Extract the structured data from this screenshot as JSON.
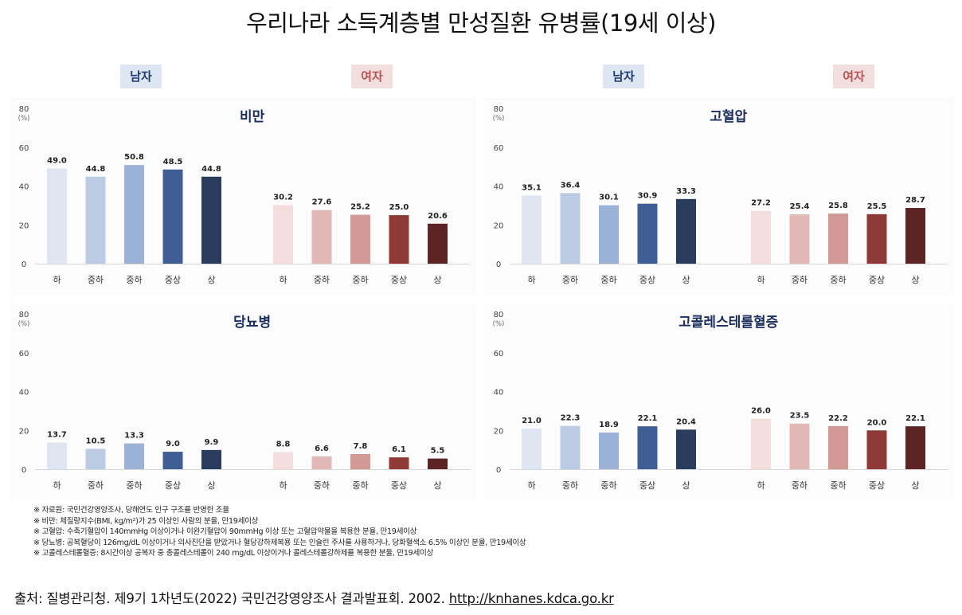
{
  "title": "우리나라 소득계층별 만성질환 유병률(19세 이상)",
  "gender_labels": {
    "male": "남자",
    "female": "여자"
  },
  "colors": {
    "male": [
      "#dfe6f2",
      "#bccbe4",
      "#9cb1d6",
      "#3f5e93",
      "#2a3d5e"
    ],
    "female": [
      "#f3dddd",
      "#e2b8b6",
      "#d39a95",
      "#8f3a36",
      "#5c2424"
    ]
  },
  "chart_data": [
    {
      "type": "bar",
      "title": "비만",
      "ylabel": "(%)",
      "ylim": [
        0,
        80
      ],
      "yticks": [
        0,
        20,
        40,
        60,
        80
      ],
      "groups": [
        "남자",
        "여자"
      ],
      "categories": [
        "하",
        "중하",
        "중하",
        "중상",
        "상"
      ],
      "series": [
        {
          "name": "남자",
          "values": [
            49.0,
            44.8,
            50.8,
            48.5,
            44.8
          ],
          "labels": [
            "49.0",
            "44.8",
            "50.8",
            "48.5",
            "44.8"
          ]
        },
        {
          "name": "여자",
          "values": [
            30.2,
            27.6,
            25.2,
            25.0,
            20.6
          ],
          "labels": [
            "30.2",
            "27.6",
            "25.2",
            "25.0",
            "20.6"
          ]
        }
      ]
    },
    {
      "type": "bar",
      "title": "고혈압",
      "ylabel": "(%)",
      "ylim": [
        0,
        80
      ],
      "yticks": [
        0,
        20,
        40,
        60,
        80
      ],
      "groups": [
        "남자",
        "여자"
      ],
      "categories": [
        "하",
        "중하",
        "중하",
        "중상",
        "상"
      ],
      "series": [
        {
          "name": "남자",
          "values": [
            35.1,
            36.4,
            30.1,
            30.9,
            33.3
          ],
          "labels": [
            "35.1",
            "36.4",
            "30.1",
            "30.9",
            "33.3"
          ]
        },
        {
          "name": "여자",
          "values": [
            27.2,
            25.4,
            25.8,
            25.5,
            28.7
          ],
          "labels": [
            "27.2",
            "25.4",
            "25.8",
            "25.5",
            "28.7"
          ]
        }
      ]
    },
    {
      "type": "bar",
      "title": "당뇨병",
      "ylabel": "(%)",
      "ylim": [
        0,
        80
      ],
      "yticks": [
        0,
        20,
        40,
        60,
        80
      ],
      "groups": [
        "남자",
        "여자"
      ],
      "categories": [
        "하",
        "중하",
        "중하",
        "중상",
        "상"
      ],
      "series": [
        {
          "name": "남자",
          "values": [
            13.7,
            10.5,
            13.3,
            9.0,
            9.9
          ],
          "labels": [
            "13.7",
            "10.5",
            "13.3",
            "9.0",
            "9.9"
          ]
        },
        {
          "name": "여자",
          "values": [
            8.8,
            6.6,
            7.8,
            6.1,
            5.5
          ],
          "labels": [
            "8.8",
            "6.6",
            "7.8",
            "6.1",
            "5.5"
          ]
        }
      ]
    },
    {
      "type": "bar",
      "title": "고콜레스테롤혈증",
      "ylabel": "(%)",
      "ylim": [
        0,
        80
      ],
      "yticks": [
        0,
        20,
        40,
        60,
        80
      ],
      "groups": [
        "남자",
        "여자"
      ],
      "categories": [
        "하",
        "중하",
        "중하",
        "중상",
        "상"
      ],
      "series": [
        {
          "name": "남자",
          "values": [
            21.0,
            22.3,
            18.9,
            22.1,
            20.4
          ],
          "labels": [
            "21.0",
            "22.3",
            "18.9",
            "22.1",
            "20.4"
          ]
        },
        {
          "name": "여자",
          "values": [
            26.0,
            23.5,
            22.2,
            20.0,
            22.1
          ],
          "labels": [
            "26.0",
            "23.5",
            "22.2",
            "20.0",
            "22.1"
          ]
        }
      ]
    }
  ],
  "notes": [
    "※ 자료원: 국민건강영양조사, 당해연도 인구 구조를 반영한 조율",
    "※ 비만: 체질량지수(BMI, kg/m²)가 25 이상인 사람의 분율, 만19세이상",
    "※ 고혈압: 수축기혈압이 140mmHg 이상이거나 이완기혈압이 90mmHg 이상 또는 고혈압약물을 복용한 분율, 만19세이상",
    "※ 당뇨병: 공복혈당이 126mg/dL 이상이거나 의사진단을 받았거나 혈당강하제복용 또는 인슐린 주사를 사용하거나, 당화혈색소 6.5% 이상인 분율, 만19세이상",
    "※ 고콜레스테롤혈증: 8시간이상 공복자 중 총콜레스테롤이 240 mg/dL 이상이거나 콜레스테롤강하제를 복용한 분율, 만19세이상"
  ],
  "source": {
    "text": "출처: 질병관리청. 제9기 1차년도(2022) 국민건강영양조사 결과발표회. 2002.",
    "url": "http://knhanes.kdca.go.kr"
  }
}
